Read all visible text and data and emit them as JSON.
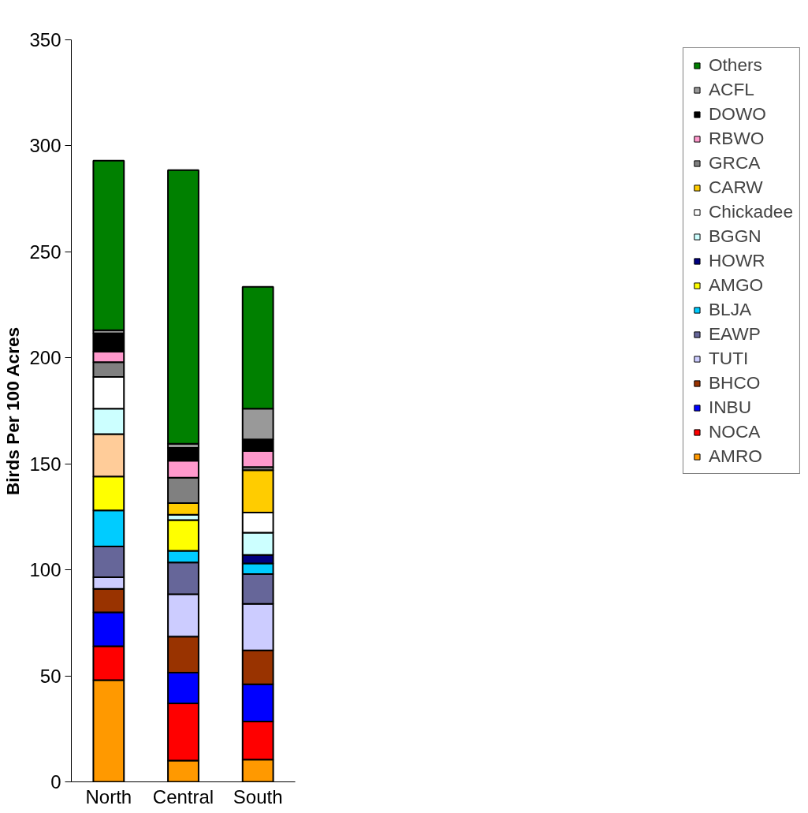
{
  "chart_data": {
    "type": "bar",
    "stacked": true,
    "ylabel": "Birds Per 100 Acres",
    "categories": [
      "North",
      "Central",
      "South"
    ],
    "ylim": [
      0,
      350
    ],
    "yticks": [
      0,
      50,
      100,
      150,
      200,
      250,
      300,
      350
    ],
    "grid": false,
    "legend": "right",
    "series": [
      {
        "name": "AMRO",
        "color": "#ff9900",
        "values": [
          48,
          10,
          10.5
        ]
      },
      {
        "name": "NOCA",
        "color": "#ff0000",
        "values": [
          16,
          27,
          18
        ]
      },
      {
        "name": "INBU",
        "color": "#0000ff",
        "values": [
          16,
          14.5,
          17.5
        ]
      },
      {
        "name": "BHCO",
        "color": "#993300",
        "values": [
          11,
          17,
          16
        ]
      },
      {
        "name": "TUTI",
        "color": "#ccccff",
        "values": [
          5.5,
          20,
          22
        ]
      },
      {
        "name": "EAWP",
        "color": "#666699",
        "values": [
          14.5,
          15,
          14
        ]
      },
      {
        "name": "BLJA",
        "color": "#00ccff",
        "values": [
          17,
          5.5,
          5
        ]
      },
      {
        "name": "AMGO",
        "color": "#ffff00",
        "values": [
          16,
          14.5,
          null
        ]
      },
      {
        "name": "HOWR",
        "color": "#000080",
        "colors": [
          "#ffcc99",
          "#000080",
          "#000080"
        ],
        "values": [
          20,
          null,
          4
        ]
      },
      {
        "name": "BGGN",
        "color": "#ccffff",
        "values": [
          12,
          2.5,
          10.5
        ]
      },
      {
        "name": "Chickadee",
        "color": "#ffffff",
        "values": [
          15,
          null,
          9.5
        ]
      },
      {
        "name": "CARW",
        "color": "#ffcc00",
        "values": [
          null,
          5.5,
          20
        ]
      },
      {
        "name": "GRCA",
        "color": "#808080",
        "values": [
          7,
          12,
          1.5
        ]
      },
      {
        "name": "RBWO",
        "color": "#ff99cc",
        "values": [
          5,
          8,
          7.5
        ]
      },
      {
        "name": "DOWO",
        "color": "#000000",
        "values": [
          8.5,
          6,
          5.5
        ]
      },
      {
        "name": "ACFL",
        "color": "#999999",
        "values": [
          1.5,
          2,
          14.5
        ]
      },
      {
        "name": "Others",
        "color": "#008000",
        "values": [
          80,
          129,
          57.5
        ]
      }
    ]
  }
}
